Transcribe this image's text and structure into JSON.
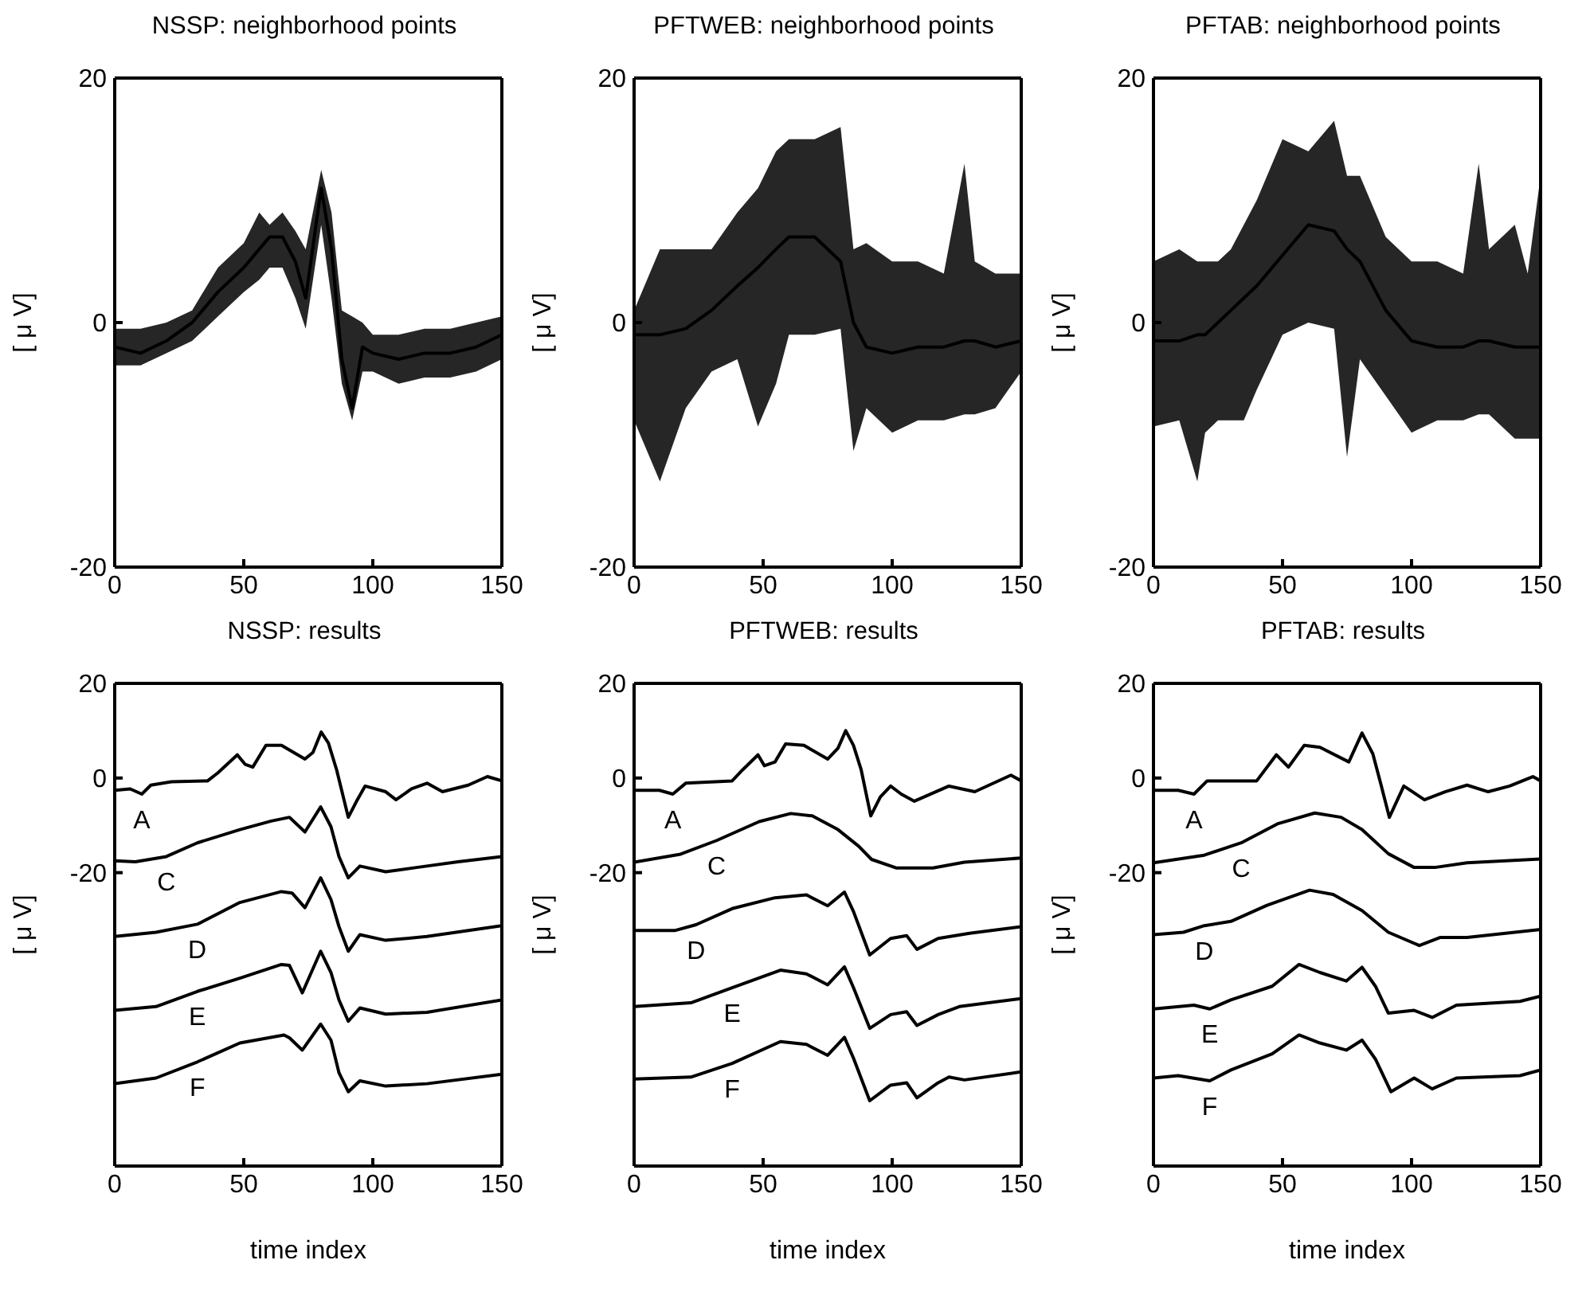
{
  "chart_data": [
    {
      "type": "line",
      "title": "NSSP: neighborhood points",
      "ylabel": "[ μ V]",
      "xlim": [
        0,
        150
      ],
      "xticks": [
        0,
        50,
        100,
        150
      ],
      "ylim": [
        -20,
        20
      ],
      "yticks": [
        -20,
        0,
        20
      ],
      "series": [
        {
          "color": "#000000",
          "x": [
            0,
            10,
            20,
            30,
            40,
            50,
            56,
            60,
            65,
            70,
            74,
            80,
            84,
            88,
            92,
            96,
            100,
            110,
            120,
            130,
            140,
            150
          ],
          "values": [
            -2,
            -2.5,
            -1.5,
            0,
            2.5,
            4.5,
            6,
            7,
            7,
            5,
            2,
            11,
            6,
            -3,
            -7,
            -2,
            -2.5,
            -3,
            -2.5,
            -2.5,
            -2,
            -1
          ],
          "lower": [
            -3.5,
            -3.5,
            -2.5,
            -1.5,
            0.5,
            2.5,
            3.5,
            4.5,
            4.5,
            2,
            -0.5,
            8,
            2,
            -5,
            -8,
            -4,
            -4,
            -5,
            -4.5,
            -4.5,
            -4,
            -3
          ],
          "upper": [
            -0.5,
            -0.5,
            0,
            1,
            4.5,
            6.5,
            9,
            8,
            9,
            7.5,
            6,
            12.5,
            9,
            1,
            0.5,
            0,
            -1,
            -1,
            -0.5,
            -0.5,
            0,
            0.5
          ]
        }
      ]
    },
    {
      "type": "line",
      "title": "PFTWEB: neighborhood points",
      "ylabel": "[ μ V]",
      "xlim": [
        0,
        150
      ],
      "xticks": [
        0,
        50,
        100,
        150
      ],
      "ylim": [
        -20,
        20
      ],
      "yticks": [
        -20,
        0,
        20
      ],
      "series": [
        {
          "color": "#000000",
          "x": [
            0,
            10,
            20,
            30,
            40,
            48,
            55,
            60,
            70,
            80,
            85,
            90,
            100,
            110,
            120,
            128,
            132,
            140,
            150
          ],
          "values": [
            -1,
            -1,
            -0.5,
            1,
            3,
            4.5,
            6,
            7,
            7,
            5,
            0,
            -2,
            -2.5,
            -2,
            -2,
            -1.5,
            -1.5,
            -2,
            -1.5
          ],
          "lower": [
            -8,
            -13,
            -7,
            -4,
            -3,
            -8.5,
            -5,
            -1,
            -1,
            -0.5,
            -10.5,
            -7,
            -9,
            -8,
            -8,
            -7.5,
            -7.5,
            -7,
            -4
          ],
          "upper": [
            1,
            6,
            6,
            6,
            9,
            11,
            14,
            15,
            15,
            16,
            6,
            6.5,
            5,
            5,
            4,
            13,
            5,
            4,
            4
          ]
        }
      ]
    },
    {
      "type": "line",
      "title": "PFTAB: neighborhood points",
      "ylabel": "[ μ V]",
      "xlim": [
        0,
        150
      ],
      "xticks": [
        0,
        50,
        100,
        150
      ],
      "ylim": [
        -20,
        20
      ],
      "yticks": [
        -20,
        0,
        20
      ],
      "series": [
        {
          "color": "#000000",
          "x": [
            0,
            10,
            17,
            20,
            25,
            30,
            35,
            40,
            50,
            60,
            70,
            75,
            80,
            90,
            100,
            110,
            120,
            126,
            130,
            140,
            145,
            150
          ],
          "values": [
            -1.5,
            -1.5,
            -1,
            -1,
            0,
            1,
            2,
            3,
            5.5,
            8,
            7.5,
            6,
            5,
            1,
            -1.5,
            -2,
            -2,
            -1.5,
            -1.5,
            -2,
            -2,
            -2
          ],
          "lower": [
            -8.5,
            -8,
            -13,
            -9,
            -8,
            -8,
            -8,
            -5.5,
            -1,
            0,
            -0.5,
            -11,
            -3,
            -6,
            -9,
            -8,
            -8,
            -7.5,
            -7.5,
            -9.5,
            -9.5,
            -9.5
          ],
          "upper": [
            5,
            6,
            5,
            5,
            5,
            6,
            8,
            10,
            15,
            14,
            16.5,
            12,
            12,
            7,
            5,
            5,
            4,
            13,
            6,
            8,
            4,
            12
          ]
        }
      ]
    },
    {
      "type": "line",
      "title": "NSSP: results",
      "xlabel": "time index",
      "ylabel": "[ μ V]",
      "xlim": [
        0,
        150
      ],
      "xticks": [
        0,
        50,
        100,
        150
      ],
      "ylim": [
        -82,
        20
      ],
      "yticks": [
        -20,
        0,
        20
      ],
      "series": [
        {
          "name": "A",
          "color": "#000000",
          "x": [
            0,
            6,
            10.5,
            14,
            22,
            36,
            40,
            47.5,
            50.5,
            53.5,
            58.6,
            64.6,
            73.7,
            76.8,
            80,
            82.8,
            86,
            90.5,
            94,
            97,
            105,
            109,
            115,
            121,
            127,
            137,
            144.4,
            150
          ],
          "values": [
            -2.6,
            -2.3,
            -3.4,
            -1.5,
            -0.8,
            -0.6,
            1.1,
            4.9,
            2.9,
            2.3,
            6.9,
            6.9,
            4,
            5.4,
            9.7,
            7.4,
            1.7,
            -8.3,
            -4.6,
            -1.7,
            -2.9,
            -4.6,
            -2.3,
            -1.1,
            -2.9,
            -1.5,
            0.3,
            -0.6
          ]
        },
        {
          "name": "C",
          "color": "#000000",
          "x": [
            0,
            8,
            20,
            32,
            48.5,
            60.6,
            67.7,
            73.7,
            79.8,
            83.8,
            86.9,
            90.5,
            95,
            105,
            117,
            133,
            150
          ],
          "values": [
            -17.5,
            -17.7,
            -16.6,
            -13.7,
            -10.9,
            -9.1,
            -8.3,
            -11.4,
            -6.1,
            -10.3,
            -16.6,
            -21.1,
            -18.6,
            -19.8,
            -18.9,
            -17.7,
            -16.6
          ]
        },
        {
          "name": "D",
          "color": "#000000",
          "x": [
            0,
            16,
            32,
            48.5,
            64.6,
            68.7,
            73.7,
            79.8,
            83.8,
            86.9,
            90.5,
            95,
            105,
            121,
            150
          ],
          "values": [
            -33.5,
            -32.6,
            -30.9,
            -26.3,
            -24,
            -24.3,
            -27.4,
            -21.1,
            -25.7,
            -31.4,
            -36.6,
            -33.1,
            -34.3,
            -33.5,
            -31.2
          ]
        },
        {
          "name": "E",
          "color": "#000000",
          "x": [
            0,
            16,
            32,
            48.5,
            64.6,
            67.7,
            72.7,
            79.8,
            83.8,
            86.9,
            90.5,
            95,
            105,
            121,
            150
          ],
          "values": [
            -49.1,
            -48.3,
            -45.1,
            -42.3,
            -39.4,
            -39.6,
            -45.4,
            -36.6,
            -41.1,
            -46.9,
            -51.4,
            -48.6,
            -49.9,
            -49.5,
            -46.9
          ]
        },
        {
          "name": "F",
          "color": "#000000",
          "x": [
            0,
            16,
            32,
            48.5,
            65.6,
            67.7,
            72.7,
            79.8,
            83.8,
            86.9,
            90.5,
            95,
            105,
            121,
            150
          ],
          "values": [
            -64.6,
            -63.4,
            -60,
            -56,
            -54.3,
            -54.9,
            -57.5,
            -52,
            -55.4,
            -62.3,
            -66.3,
            -64,
            -65.1,
            -64.6,
            -62.6
          ]
        }
      ]
    },
    {
      "type": "line",
      "title": "PFTWEB: results",
      "xlabel": "time index",
      "ylabel": "[ μ V]",
      "xlim": [
        0,
        150
      ],
      "xticks": [
        0,
        50,
        100,
        150
      ],
      "ylim": [
        -82,
        20
      ],
      "yticks": [
        -20,
        0,
        20
      ],
      "series": [
        {
          "name": "A",
          "color": "#000000",
          "x": [
            0,
            9.8,
            15,
            20,
            38,
            42,
            48,
            50.5,
            54.6,
            58.7,
            65.8,
            75,
            79,
            82,
            85,
            88,
            91.7,
            95.4,
            99.4,
            103.5,
            108.6,
            122,
            132,
            146,
            150
          ],
          "values": [
            -2.6,
            -2.6,
            -3.4,
            -1.1,
            -0.6,
            1.7,
            4.9,
            2.6,
            3.4,
            7.2,
            6.9,
            4,
            6.3,
            10,
            6.9,
            1.7,
            -8,
            -4,
            -1.7,
            -3.4,
            -4.9,
            -1.7,
            -2.9,
            0.6,
            -0.6
          ]
        },
        {
          "name": "C",
          "color": "#000000",
          "x": [
            0,
            18,
            32,
            48.5,
            60.7,
            69,
            79,
            87,
            92,
            101.5,
            115.8,
            128,
            150
          ],
          "values": [
            -17.8,
            -16.1,
            -13.2,
            -9.2,
            -7.5,
            -8,
            -10.9,
            -14.4,
            -17.2,
            -19,
            -19,
            -17.8,
            -16.9
          ]
        },
        {
          "name": "D",
          "color": "#000000",
          "x": [
            0,
            16,
            24,
            38,
            54.6,
            66.8,
            75,
            81.5,
            85,
            91.3,
            99.4,
            105.6,
            109.6,
            117.8,
            130,
            150
          ],
          "values": [
            -32.2,
            -32.2,
            -31,
            -27.6,
            -25.3,
            -24.7,
            -27,
            -24.1,
            -28.2,
            -37.4,
            -33.9,
            -33.3,
            -36.2,
            -33.9,
            -32.8,
            -31.4
          ]
        },
        {
          "name": "E",
          "color": "#000000",
          "x": [
            0,
            22,
            38,
            56.7,
            66.8,
            75,
            81.5,
            85,
            91.3,
            99.4,
            105.6,
            109.6,
            117.8,
            126,
            150
          ],
          "values": [
            -48.3,
            -47.5,
            -44.3,
            -40.6,
            -41.4,
            -43.7,
            -39.9,
            -44.3,
            -52.9,
            -50,
            -49.4,
            -52.3,
            -50,
            -48.3,
            -46.6
          ]
        },
        {
          "name": "F",
          "color": "#000000",
          "x": [
            0,
            22,
            38,
            56.7,
            66.8,
            75,
            81.5,
            85,
            91.3,
            99.4,
            105.6,
            109.6,
            117.8,
            122,
            128,
            150
          ],
          "values": [
            -63.6,
            -63.2,
            -60.3,
            -55.7,
            -56.3,
            -58.6,
            -54.8,
            -59.2,
            -68.2,
            -64.9,
            -64.4,
            -67.6,
            -64.4,
            -63.2,
            -63.8,
            -62.1
          ]
        }
      ]
    },
    {
      "type": "line",
      "title": "PFTAB: results",
      "xlabel": "time index",
      "ylabel": "[ μ V]",
      "xlim": [
        0,
        150
      ],
      "xticks": [
        0,
        50,
        100,
        150
      ],
      "ylim": [
        -82,
        20
      ],
      "yticks": [
        -20,
        0,
        20
      ],
      "series": [
        {
          "name": "A",
          "color": "#000000",
          "x": [
            0,
            9.6,
            15.7,
            20.8,
            40,
            47.6,
            52.3,
            58.4,
            64.5,
            75.7,
            80.8,
            85,
            88,
            91.4,
            97,
            105,
            113,
            121.5,
            129.7,
            138,
            147,
            150
          ],
          "values": [
            -2.6,
            -2.6,
            -3.4,
            -0.6,
            -0.6,
            4.9,
            2.3,
            6.9,
            6.5,
            3.4,
            9.5,
            5.1,
            -1.1,
            -8.3,
            -1.7,
            -4.6,
            -2.9,
            -1.5,
            -2.9,
            -1.7,
            0.3,
            -0.6
          ]
        },
        {
          "name": "C",
          "color": "#000000",
          "x": [
            0,
            19.7,
            34,
            48,
            62.5,
            72.7,
            80.8,
            91,
            101,
            109,
            121.5,
            150
          ],
          "values": [
            -17.9,
            -16.3,
            -13.7,
            -9.7,
            -7.4,
            -8.3,
            -10.9,
            -16,
            -18.9,
            -18.9,
            -17.9,
            -17.1
          ]
        },
        {
          "name": "D",
          "color": "#000000",
          "x": [
            0,
            11.6,
            19.7,
            30,
            44,
            60.5,
            69.6,
            80.8,
            91,
            103,
            111,
            121.5,
            150
          ],
          "values": [
            -33.1,
            -32.6,
            -31.2,
            -30.3,
            -26.9,
            -23.7,
            -24.6,
            -28,
            -32.6,
            -35.4,
            -33.7,
            -33.7,
            -32
          ]
        },
        {
          "name": "E",
          "color": "#000000",
          "x": [
            0,
            15.7,
            21.8,
            30,
            46,
            56.4,
            64.5,
            74.7,
            80.8,
            86,
            91,
            101,
            108,
            117.4,
            142,
            150
          ],
          "values": [
            -48.8,
            -48,
            -48.8,
            -46.9,
            -44,
            -39.4,
            -41.1,
            -42.9,
            -40,
            -44,
            -49.7,
            -49.1,
            -50.6,
            -48,
            -47.2,
            -46.1
          ]
        },
        {
          "name": "F",
          "color": "#000000",
          "x": [
            0,
            9.6,
            21.8,
            30,
            46,
            56.4,
            64.5,
            74.7,
            80.8,
            86,
            92,
            101,
            108,
            117.4,
            142,
            150
          ],
          "values": [
            -63.4,
            -62.9,
            -64,
            -61.7,
            -58.3,
            -54.3,
            -56,
            -57.5,
            -55.4,
            -59.4,
            -66.3,
            -63.4,
            -65.7,
            -63.4,
            -62.9,
            -61.7
          ]
        }
      ]
    }
  ]
}
